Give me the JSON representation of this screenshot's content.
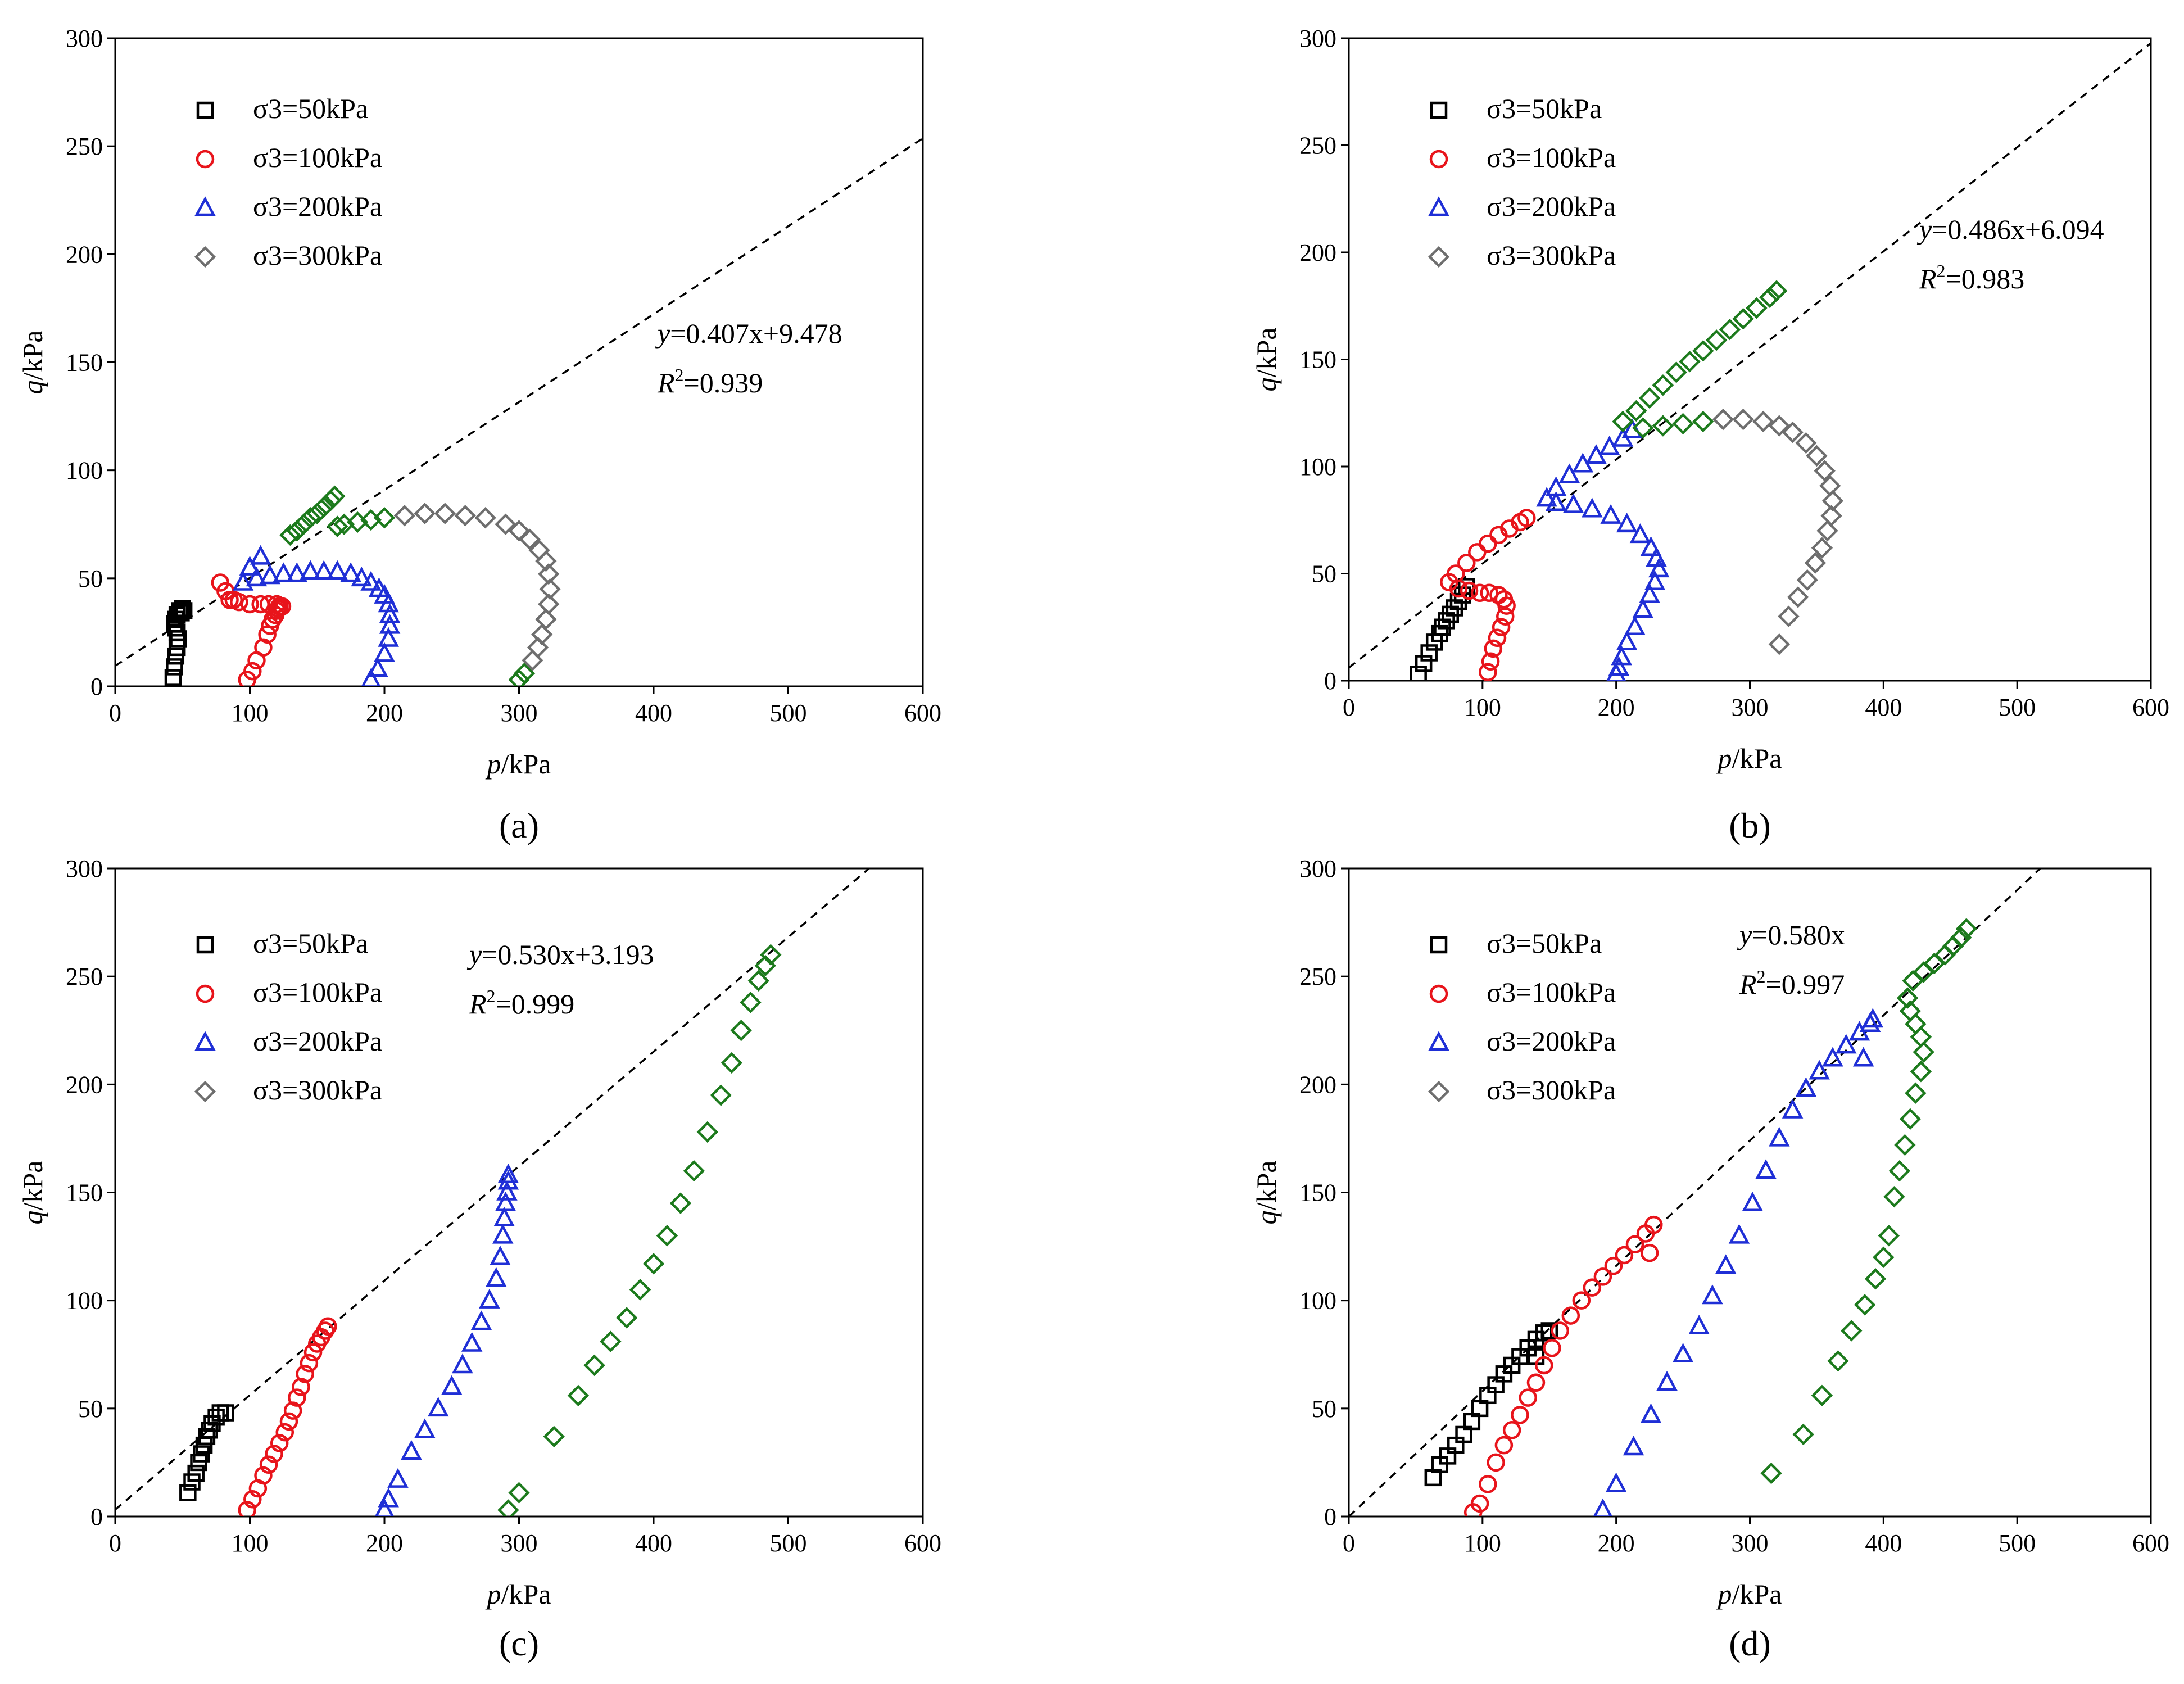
{
  "axis_labels": {
    "x_var": "p",
    "x_unit": "/kPa",
    "y_var": "q",
    "y_unit": "/kPa"
  },
  "legend_labels": [
    "σ3=50kPa",
    "σ3=100kPa",
    "σ3=200kPa",
    "σ3=300kPa"
  ],
  "colors": {
    "s50": "#000000",
    "s100": "#e8141b",
    "s200": "#1f2fd6",
    "s300": "#1c7a1c",
    "s300_open": "#6e6e6e"
  },
  "panels": [
    {
      "caption": "(a)",
      "equation": {
        "y_text": "y",
        "rhs": "=0.407x+9.478",
        "r2_label": "R",
        "r2_value": "=0.939"
      },
      "chart_data": {
        "type": "scatter",
        "title": "",
        "xlabel": "p/kPa",
        "ylabel": "q/kPa",
        "xlim": [
          0,
          600
        ],
        "ylim": [
          0,
          300
        ],
        "xticks": [
          0,
          100,
          200,
          300,
          400,
          500,
          600
        ],
        "yticks": [
          0,
          50,
          100,
          150,
          200,
          250,
          300
        ],
        "fit_line": {
          "slope": 0.407,
          "intercept": 9.478,
          "x_range": [
            0,
            600
          ]
        },
        "series": [
          {
            "name": "σ3=50kPa",
            "marker": "square",
            "color": "#000000",
            "x": [
              43,
              44,
              45,
              46,
              47,
              46,
              45,
              44,
              45,
              46,
              48,
              50,
              51,
              49
            ],
            "y": [
              4,
              9,
              14,
              18,
              22,
              25,
              27,
              29,
              31,
              33,
              35,
              36,
              35,
              34
            ]
          },
          {
            "name": "σ3=100kPa",
            "marker": "circle",
            "color": "#e8141b",
            "x": [
              98,
              102,
              105,
              110,
              113,
              115,
              117,
              119,
              120,
              121,
              122,
              124,
              120,
              114,
              108,
              100,
              92,
              85,
              78,
              82,
              88
            ],
            "y": [
              3,
              7,
              12,
              18,
              24,
              28,
              31,
              33,
              35,
              36,
              37,
              37,
              38,
              38,
              38,
              38,
              39,
              40,
              48,
              44,
              40
            ]
          },
          {
            "name": "σ3=200kPa",
            "marker": "triangle",
            "color": "#1f2fd6",
            "x": [
              190,
              195,
              200,
              203,
              204,
              204,
              203,
              200,
              196,
              190,
              183,
              175,
              165,
              155,
              145,
              135,
              125,
              115,
              105,
              95,
              100,
              108
            ],
            "y": [
              3,
              8,
              15,
              22,
              28,
              33,
              38,
              42,
              45,
              48,
              50,
              52,
              53,
              53,
              53,
              52,
              52,
              51,
              50,
              48,
              55,
              60
            ]
          },
          {
            "name": "σ3=300kPa (green)",
            "marker": "diamond",
            "color": "#1c7a1c",
            "x": [
              130,
              135,
              140,
              145,
              150,
              155,
              160,
              163,
              165,
              170,
              180,
              190,
              200,
              300,
              304
            ],
            "y": [
              70,
              72,
              75,
              78,
              80,
              83,
              86,
              88,
              74,
              75,
              76,
              77,
              78,
              3,
              6
            ]
          },
          {
            "name": "σ3=300kPa (open)",
            "marker": "diamond",
            "color": "#6e6e6e",
            "x": [
              215,
              230,
              245,
              260,
              275,
              290,
              300,
              308,
              315,
              320,
              322,
              323,
              322,
              320,
              317,
              314,
              310
            ],
            "y": [
              79,
              80,
              80,
              79,
              78,
              75,
              72,
              68,
              63,
              58,
              52,
              45,
              38,
              31,
              24,
              18,
              12
            ]
          }
        ]
      }
    },
    {
      "caption": "(b)",
      "equation": {
        "y_text": "y",
        "rhs": "=0.486x+6.094",
        "r2_label": "R",
        "r2_value": "=0.983"
      },
      "chart_data": {
        "type": "scatter",
        "title": "",
        "xlabel": "p/kPa",
        "ylabel": "q/kPa",
        "xlim": [
          0,
          600
        ],
        "ylim": [
          0,
          300
        ],
        "xticks": [
          0,
          100,
          200,
          300,
          400,
          500,
          600
        ],
        "yticks": [
          0,
          50,
          100,
          150,
          200,
          250,
          300
        ],
        "fit_line": {
          "slope": 0.486,
          "intercept": 6.094,
          "x_range": [
            0,
            600
          ]
        },
        "series": [
          {
            "name": "σ3=50kPa",
            "marker": "square",
            "color": "#000000",
            "x": [
              52,
              56,
              60,
              64,
              68,
              70,
              73,
              76,
              79,
              82,
              85,
              88
            ],
            "y": [
              3,
              8,
              13,
              18,
              22,
              25,
              28,
              31,
              34,
              37,
              40,
              44
            ]
          },
          {
            "name": "σ3=100kPa",
            "marker": "circle",
            "color": "#e8141b",
            "x": [
              104,
              106,
              108,
              111,
              114,
              117,
              118,
              116,
              112,
              105,
              98,
              90,
              82,
              75,
              80,
              88,
              96,
              104,
              112,
              120,
              128,
              133
            ],
            "y": [
              4,
              9,
              15,
              20,
              25,
              30,
              35,
              38,
              40,
              41,
              41,
              42,
              43,
              46,
              50,
              55,
              60,
              64,
              68,
              71,
              74,
              76
            ]
          },
          {
            "name": "σ3=200kPa",
            "marker": "triangle",
            "color": "#1f2fd6",
            "x": [
              200,
              202,
              204,
              208,
              214,
              220,
              225,
              229,
              232,
              230,
              226,
              218,
              208,
              196,
              182,
              168,
              155,
              148,
              155,
              165,
              175,
              185,
              195,
              205,
              212
            ],
            "y": [
              3,
              6,
              11,
              18,
              25,
              33,
              40,
              46,
              52,
              57,
              62,
              68,
              73,
              77,
              80,
              82,
              83,
              85,
              90,
              96,
              101,
              105,
              109,
              113,
              117
            ]
          },
          {
            "name": "σ3=300kPa (green)",
            "marker": "diamond",
            "color": "#1c7a1c",
            "x": [
              205,
              215,
              225,
              235,
              245,
              255,
              265,
              275,
              285,
              295,
              305,
              315,
              320,
              220,
              235,
              250,
              265
            ],
            "y": [
              121,
              126,
              132,
              138,
              144,
              149,
              154,
              159,
              164,
              169,
              174,
              179,
              182,
              118,
              119,
              120,
              121
            ]
          },
          {
            "name": "σ3=300kPa (open)",
            "marker": "diamond",
            "color": "#6e6e6e",
            "x": [
              280,
              295,
              310,
              322,
              332,
              342,
              350,
              356,
              360,
              362,
              361,
              358,
              354,
              349,
              343,
              336,
              329,
              322
            ],
            "y": [
              122,
              122,
              121,
              119,
              116,
              111,
              105,
              98,
              91,
              84,
              77,
              70,
              62,
              55,
              47,
              39,
              30,
              17
            ]
          }
        ]
      }
    },
    {
      "caption": "(c)",
      "equation": {
        "y_text": "y",
        "rhs": "=0.530x+3.193",
        "r2_label": "R",
        "r2_value": "=0.999"
      },
      "chart_data": {
        "type": "scatter",
        "title": "",
        "xlabel": "p/kPa",
        "ylabel": "q/kPa",
        "xlim": [
          0,
          600
        ],
        "ylim": [
          0,
          300
        ],
        "xticks": [
          0,
          100,
          200,
          300,
          400,
          500,
          600
        ],
        "yticks": [
          0,
          50,
          100,
          150,
          200,
          250,
          300
        ],
        "fit_line": {
          "slope": 0.53,
          "intercept": 3.193,
          "x_range": [
            0,
            600
          ]
        },
        "series": [
          {
            "name": "σ3=50kPa",
            "marker": "square",
            "color": "#000000",
            "x": [
              54,
              57,
              60,
              62,
              64,
              66,
              68,
              70,
              72,
              75,
              78,
              82
            ],
            "y": [
              11,
              16,
              20,
              25,
              29,
              33,
              37,
              40,
              43,
              46,
              48,
              48
            ]
          },
          {
            "name": "σ3=100kPa",
            "marker": "circle",
            "color": "#e8141b",
            "x": [
              98,
              102,
              106,
              110,
              114,
              118,
              122,
              126,
              129,
              132,
              135,
              138,
              141,
              144,
              147,
              150,
              153,
              156,
              158
            ],
            "y": [
              3,
              8,
              13,
              19,
              24,
              29,
              34,
              39,
              44,
              49,
              55,
              60,
              66,
              71,
              76,
              80,
              83,
              86,
              88
            ]
          },
          {
            "name": "σ3=200kPa",
            "marker": "triangle",
            "color": "#1f2fd6",
            "x": [
              200,
              203,
              210,
              220,
              230,
              240,
              250,
              258,
              265,
              272,
              278,
              283,
              286,
              288,
              289,
              290,
              291,
              292,
              292
            ],
            "y": [
              3,
              8,
              17,
              30,
              40,
              50,
              60,
              70,
              80,
              90,
              100,
              110,
              120,
              130,
              138,
              145,
              150,
              155,
              158
            ]
          },
          {
            "name": "σ3=300kPa",
            "marker": "diamond",
            "color": "#1c7a1c",
            "x": [
              292,
              300,
              326,
              344,
              356,
              368,
              380,
              390,
              400,
              410,
              420,
              430,
              440,
              450,
              458,
              465,
              472,
              478,
              483,
              487
            ],
            "y": [
              3,
              11,
              37,
              56,
              70,
              81,
              92,
              105,
              117,
              130,
              145,
              160,
              178,
              195,
              210,
              225,
              238,
              248,
              255,
              260
            ]
          }
        ]
      }
    },
    {
      "caption": "(d)",
      "equation": {
        "y_text": "y",
        "rhs": "=0.580x",
        "r2_label": "R",
        "r2_value": "=0.997"
      },
      "chart_data": {
        "type": "scatter",
        "title": "",
        "xlabel": "p/kPa",
        "ylabel": "q/kPa",
        "xlim": [
          0,
          600
        ],
        "ylim": [
          0,
          300
        ],
        "xticks": [
          0,
          100,
          200,
          300,
          400,
          500,
          600
        ],
        "yticks": [
          0,
          50,
          100,
          150,
          200,
          250,
          300
        ],
        "fit_line": {
          "slope": 0.58,
          "intercept": 0,
          "x_range": [
            0,
            600
          ]
        },
        "series": [
          {
            "name": "σ3=50kPa",
            "marker": "square",
            "color": "#000000",
            "x": [
              63,
              68,
              74,
              80,
              86,
              92,
              98,
              104,
              110,
              116,
              122,
              128,
              134,
              140,
              146,
              150,
              140
            ],
            "y": [
              18,
              24,
              28,
              33,
              38,
              44,
              50,
              56,
              61,
              66,
              70,
              74,
              78,
              82,
              85,
              86,
              74
            ]
          },
          {
            "name": "σ3=100kPa",
            "marker": "circle",
            "color": "#e8141b",
            "x": [
              93,
              98,
              104,
              110,
              116,
              122,
              128,
              134,
              140,
              146,
              152,
              158,
              166,
              174,
              182,
              190,
              198,
              206,
              214,
              222,
              228,
              225
            ],
            "y": [
              2,
              6,
              15,
              25,
              33,
              40,
              47,
              55,
              62,
              70,
              78,
              86,
              93,
              100,
              106,
              111,
              116,
              121,
              126,
              131,
              135,
              122
            ]
          },
          {
            "name": "σ3=200kPa",
            "marker": "triangle",
            "color": "#1f2fd6",
            "x": [
              190,
              200,
              213,
              226,
              238,
              250,
              262,
              272,
              282,
              292,
              302,
              312,
              322,
              332,
              342,
              352,
              362,
              372,
              382,
              390,
              392,
              385
            ],
            "y": [
              3,
              15,
              32,
              47,
              62,
              75,
              88,
              102,
              116,
              130,
              145,
              160,
              175,
              188,
              198,
              206,
              212,
              218,
              224,
              228,
              230,
              212
            ]
          },
          {
            "name": "σ3=300kPa",
            "marker": "diamond",
            "color": "#1c7a1c",
            "x": [
              316,
              340,
              354,
              366,
              376,
              386,
              394,
              400,
              404,
              408,
              412,
              416,
              420,
              424,
              428,
              430,
              428,
              424,
              420,
              418,
              422,
              430,
              438,
              446,
              452,
              458,
              462
            ],
            "y": [
              20,
              38,
              56,
              72,
              86,
              98,
              110,
              120,
              130,
              148,
              160,
              172,
              184,
              196,
              206,
              215,
              222,
              228,
              234,
              240,
              248,
              252,
              256,
              260,
              264,
              268,
              272
            ]
          }
        ]
      }
    }
  ]
}
